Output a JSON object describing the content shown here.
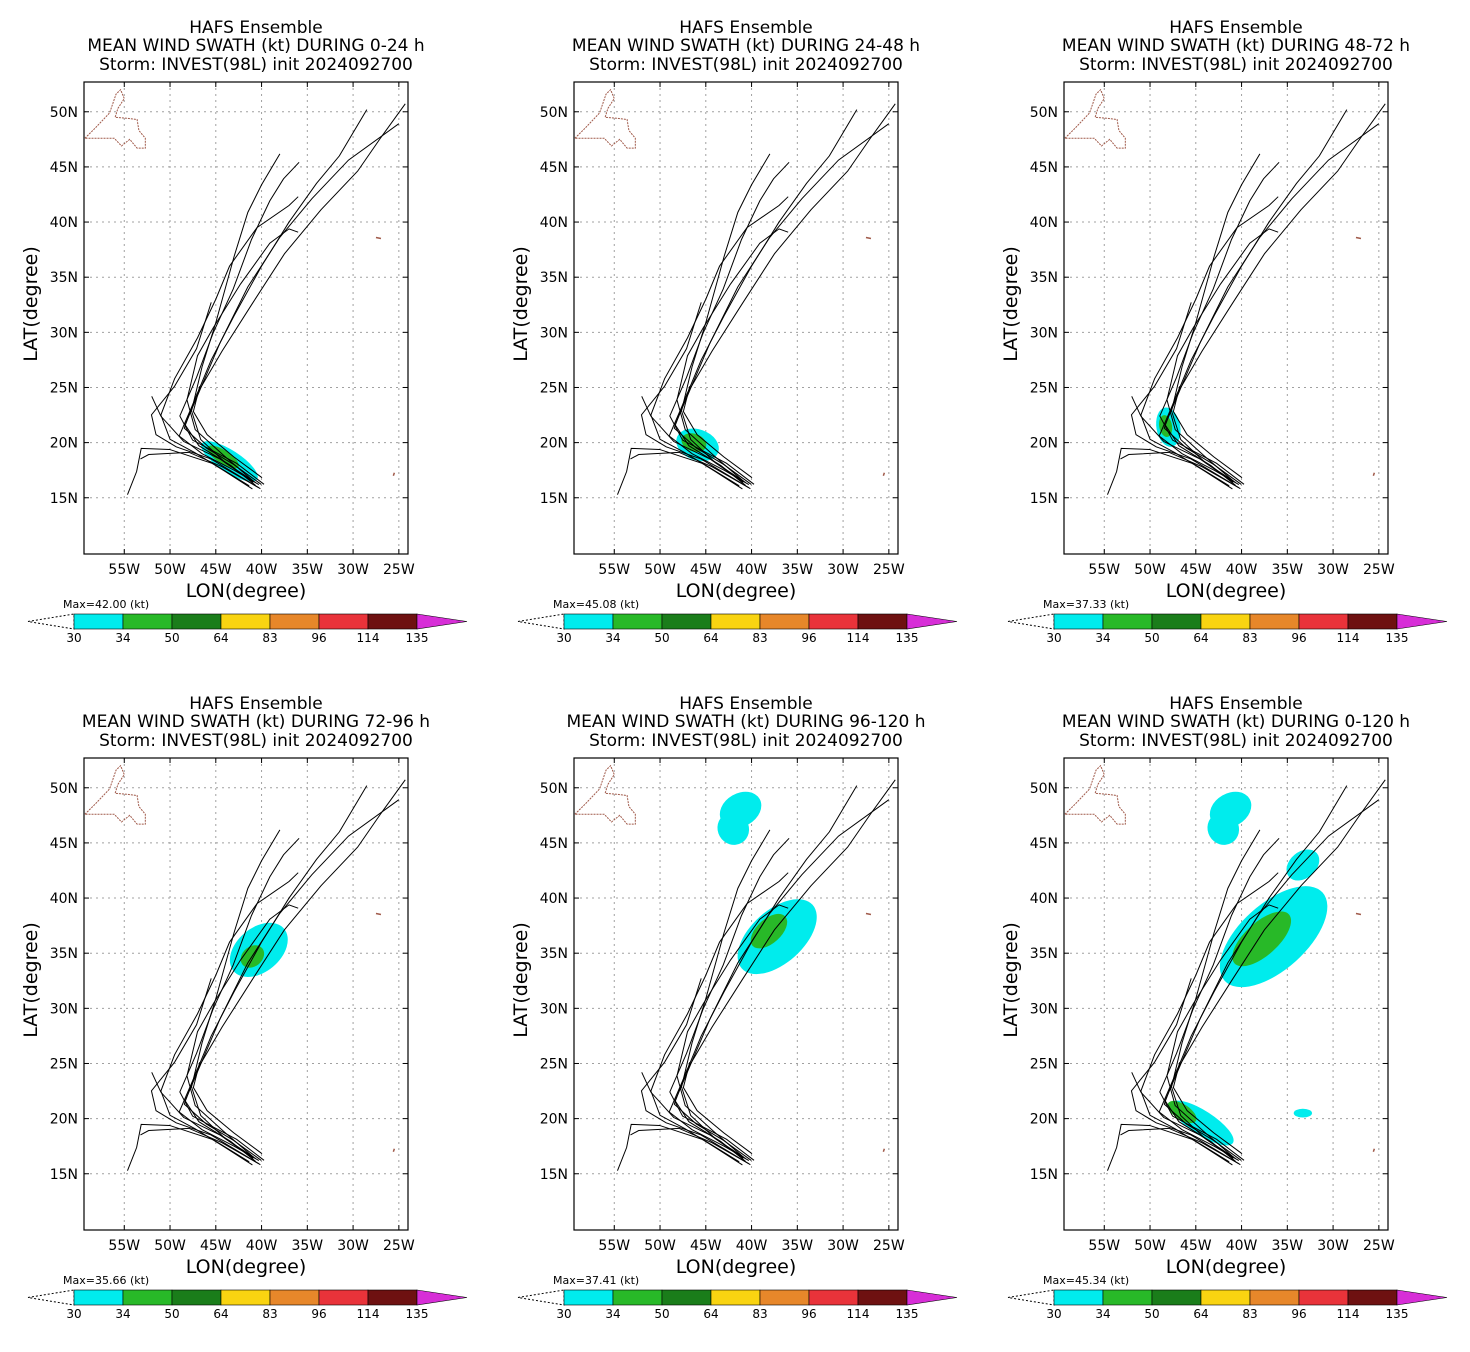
{
  "colors": {
    "levels": [
      "#00eced",
      "#28b928",
      "#1a7d1a",
      "#f9d411",
      "#e7872a",
      "#e9333a",
      "#6e1111",
      "#d72ed7"
    ],
    "coast": "#a05a4a",
    "track": "#000000",
    "grid": "#a0a0a0"
  },
  "common": {
    "ylabel": "LAT(degree)",
    "xlabel": "LON(degree)",
    "lat_ticks": [
      "15N",
      "20N",
      "25N",
      "30N",
      "35N",
      "40N",
      "45N",
      "50N"
    ],
    "lon_ticks": [
      "55W",
      "50W",
      "45W",
      "40W",
      "35W",
      "30W",
      "25W"
    ],
    "colorbar_levels": [
      "30",
      "34",
      "50",
      "64",
      "83",
      "96",
      "114",
      "135"
    ]
  },
  "panels": [
    {
      "title1": "HAFS Ensemble",
      "title2": "MEAN WIND SWATH (kt) DURING  0-24 h",
      "title3": "Storm: INVEST(98L) init 2024092700",
      "max": "Max=42.00 (kt)"
    },
    {
      "title1": "HAFS Ensemble",
      "title2": "MEAN WIND SWATH (kt) DURING 24-48 h",
      "title3": "Storm: INVEST(98L) init 2024092700",
      "max": "Max=45.08 (kt)"
    },
    {
      "title1": "HAFS Ensemble",
      "title2": "MEAN WIND SWATH (kt) DURING 48-72 h",
      "title3": "Storm: INVEST(98L) init 2024092700",
      "max": "Max=37.33 (kt)"
    },
    {
      "title1": "HAFS Ensemble",
      "title2": "MEAN WIND SWATH (kt) DURING 72-96 h",
      "title3": "Storm: INVEST(98L) init 2024092700",
      "max": "Max=35.66 (kt)"
    },
    {
      "title1": "HAFS Ensemble",
      "title2": "MEAN WIND SWATH (kt) DURING 96-120 h",
      "title3": "Storm: INVEST(98L) init 2024092700",
      "max": "Max=37.41 (kt)"
    },
    {
      "title1": "HAFS Ensemble",
      "title2": "MEAN WIND SWATH (kt) DURING 0-120 h",
      "title3": "Storm: INVEST(98L) init 2024092700",
      "max": "Max=45.34 (kt)"
    }
  ]
}
